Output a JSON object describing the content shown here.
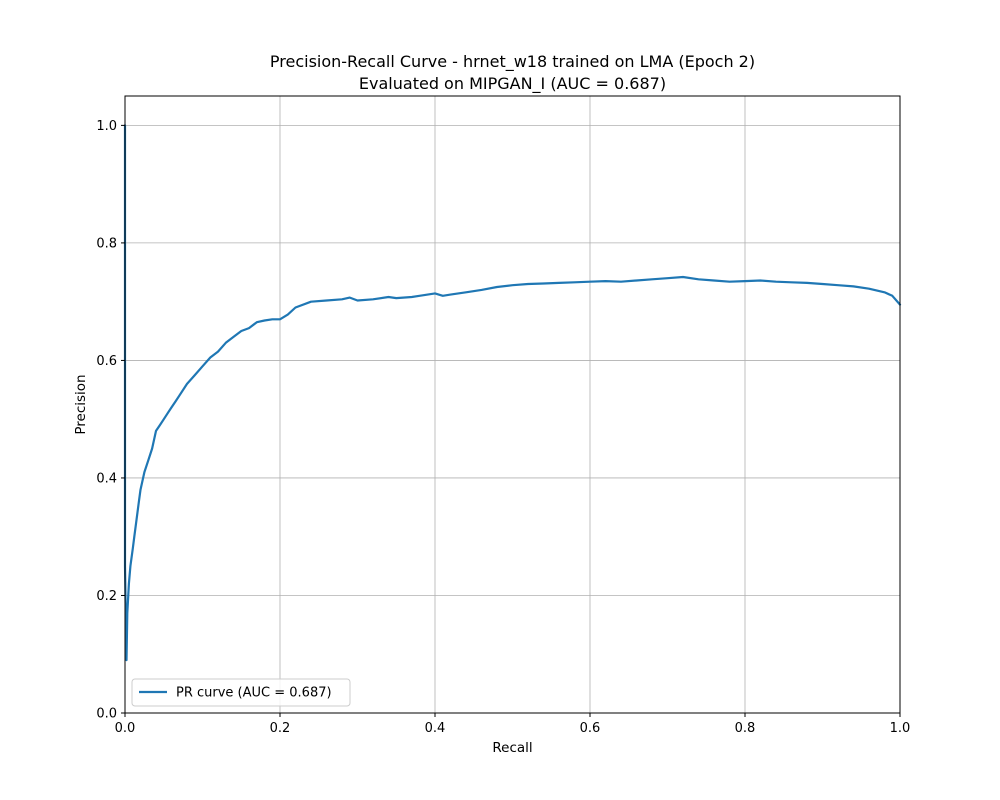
{
  "chart_data": {
    "type": "line",
    "title": "Precision-Recall Curve - hrnet_w18 trained on LMA (Epoch 2)",
    "subtitle": "Evaluated on MIPGAN_I (AUC = 0.687)",
    "xlabel": "Recall",
    "ylabel": "Precision",
    "xlim": [
      0.0,
      1.0
    ],
    "ylim": [
      0.0,
      1.05
    ],
    "xticks": [
      "0.0",
      "0.2",
      "0.4",
      "0.6",
      "0.8",
      "1.0"
    ],
    "yticks": [
      "0.0",
      "0.2",
      "0.4",
      "0.6",
      "0.8",
      "1.0"
    ],
    "grid": true,
    "legend_position": "lower-left",
    "series": [
      {
        "name": "PR curve (AUC = 0.687)",
        "color": "#1f77b4",
        "x": [
          0.0,
          0.0,
          0.002,
          0.003,
          0.005,
          0.007,
          0.01,
          0.012,
          0.015,
          0.018,
          0.02,
          0.025,
          0.03,
          0.035,
          0.04,
          0.045,
          0.05,
          0.055,
          0.06,
          0.065,
          0.07,
          0.08,
          0.09,
          0.1,
          0.11,
          0.12,
          0.13,
          0.14,
          0.15,
          0.16,
          0.17,
          0.18,
          0.19,
          0.2,
          0.21,
          0.22,
          0.24,
          0.26,
          0.28,
          0.29,
          0.3,
          0.32,
          0.34,
          0.35,
          0.37,
          0.38,
          0.4,
          0.41,
          0.42,
          0.44,
          0.46,
          0.48,
          0.5,
          0.52,
          0.54,
          0.56,
          0.58,
          0.6,
          0.62,
          0.64,
          0.66,
          0.68,
          0.7,
          0.72,
          0.74,
          0.76,
          0.78,
          0.8,
          0.82,
          0.84,
          0.86,
          0.88,
          0.9,
          0.92,
          0.94,
          0.96,
          0.98,
          0.99,
          1.0
        ],
        "y": [
          1.0,
          0.25,
          0.09,
          0.17,
          0.22,
          0.25,
          0.28,
          0.3,
          0.33,
          0.36,
          0.38,
          0.41,
          0.43,
          0.45,
          0.48,
          0.49,
          0.5,
          0.51,
          0.52,
          0.53,
          0.54,
          0.56,
          0.575,
          0.59,
          0.605,
          0.615,
          0.63,
          0.64,
          0.65,
          0.655,
          0.665,
          0.668,
          0.67,
          0.67,
          0.678,
          0.69,
          0.7,
          0.702,
          0.704,
          0.707,
          0.702,
          0.704,
          0.708,
          0.706,
          0.708,
          0.71,
          0.714,
          0.71,
          0.712,
          0.716,
          0.72,
          0.725,
          0.728,
          0.73,
          0.731,
          0.732,
          0.733,
          0.734,
          0.735,
          0.734,
          0.736,
          0.738,
          0.74,
          0.742,
          0.738,
          0.736,
          0.734,
          0.735,
          0.736,
          0.734,
          0.733,
          0.732,
          0.73,
          0.728,
          0.726,
          0.722,
          0.716,
          0.71,
          0.695
        ]
      }
    ]
  }
}
